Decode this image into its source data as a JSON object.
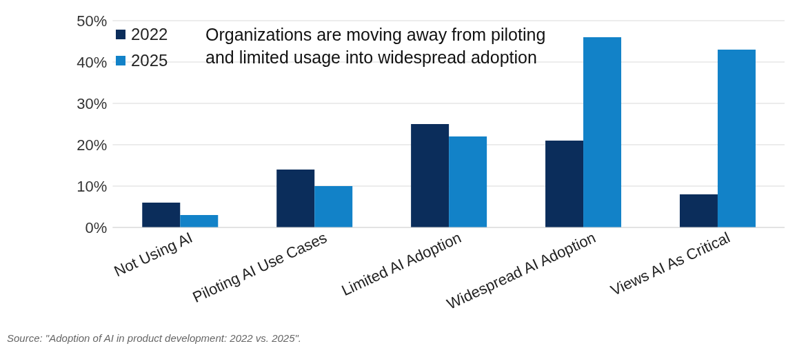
{
  "chart_data": {
    "type": "bar",
    "title": "Organizations are moving away from piloting and limited usage into widespread adoption",
    "categories": [
      "Not Using AI",
      "Piloting AI Use Cases",
      "Limited AI Adoption",
      "Widespread AI Adoption",
      "Views AI As Critical"
    ],
    "series": [
      {
        "name": "2022",
        "color": "#0b2d5b",
        "values": [
          6,
          14,
          25,
          21,
          8
        ]
      },
      {
        "name": "2025",
        "color": "#1282c8",
        "values": [
          3,
          10,
          22,
          46,
          43
        ]
      }
    ],
    "ylim": [
      0,
      50
    ],
    "yticks": [
      {
        "value": 0,
        "label": "0%"
      },
      {
        "value": 10,
        "label": "10%"
      },
      {
        "value": 20,
        "label": "20%"
      },
      {
        "value": 30,
        "label": "30%"
      },
      {
        "value": 40,
        "label": "40%"
      },
      {
        "value": 50,
        "label": "50%"
      }
    ],
    "grid": "y",
    "legend": "top left",
    "annotations": [
      "Source: \"Adoption of AI in product development: 2022 vs. 2025\"."
    ]
  }
}
